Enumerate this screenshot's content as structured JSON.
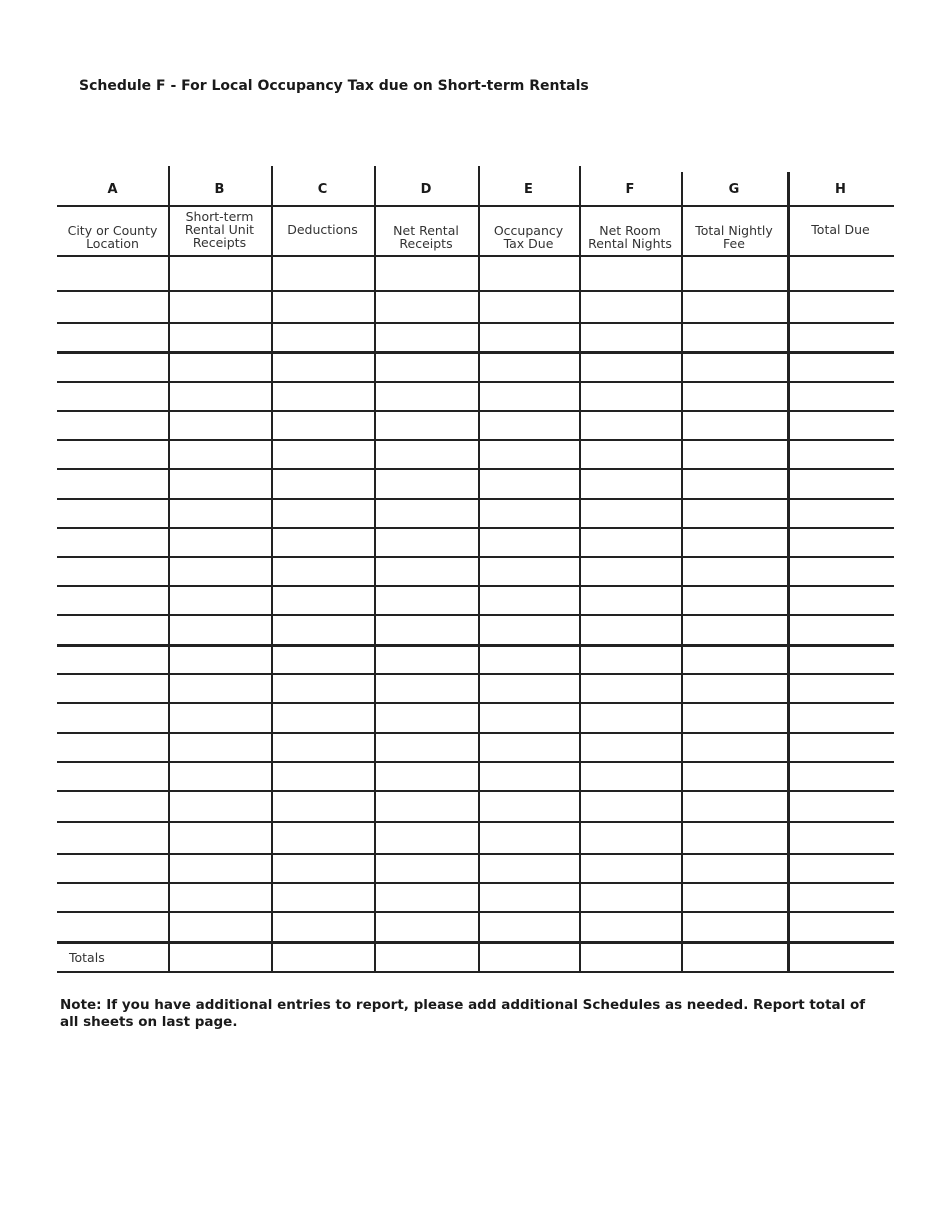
{
  "title": "Schedule F - For Local Occupancy Tax due on Short-term Rentals",
  "columns": [
    {
      "letter": "A",
      "label": "City or County\nLocation"
    },
    {
      "letter": "B",
      "label": "Short-term\nRental Unit\nReceipts"
    },
    {
      "letter": "C",
      "label": "Deductions"
    },
    {
      "letter": "D",
      "label": "Net Rental\nReceipts"
    },
    {
      "letter": "E",
      "label": "Occupancy\nTax Due"
    },
    {
      "letter": "F",
      "label": "Net Room\nRental Nights"
    },
    {
      "letter": "G",
      "label": "Total Nightly\nFee"
    },
    {
      "letter": "H",
      "label": "Total Due"
    }
  ],
  "totals_label": "Totals",
  "note": "Note:  If you have additional entries to report, please add additional Schedules as needed.  Report total of all sheets on last page."
}
